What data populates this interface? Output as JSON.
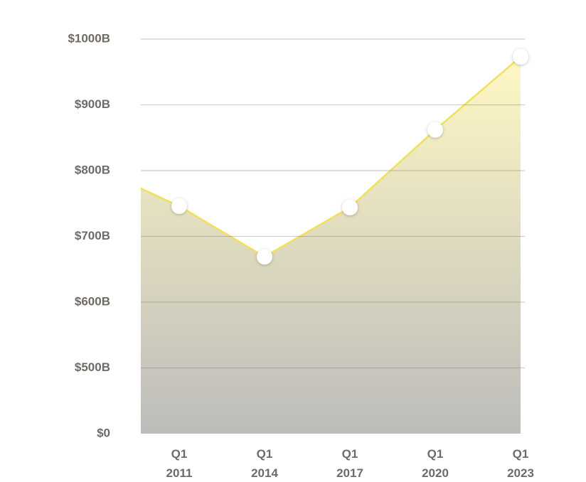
{
  "chart_data": {
    "type": "area",
    "categories": [
      null,
      "Q1 2011",
      "Q1 2014",
      "Q1 2017",
      "Q1 2020",
      "Q1 2023"
    ],
    "values": [
      806,
      746,
      669,
      744,
      862,
      973
    ],
    "color": "#f2e05a",
    "ylim": [
      0,
      1000
    ],
    "yticks": [
      {
        "value": 0,
        "label": "$0"
      },
      {
        "value": 500,
        "label": "$500B"
      },
      {
        "value": 600,
        "label": "$600B"
      },
      {
        "value": 700,
        "label": "$700B"
      },
      {
        "value": 800,
        "label": "$800B"
      },
      {
        "value": 900,
        "label": "$900B"
      },
      {
        "value": 1000,
        "label": "$1000B"
      }
    ],
    "y_axis_break": true,
    "grid": true
  }
}
